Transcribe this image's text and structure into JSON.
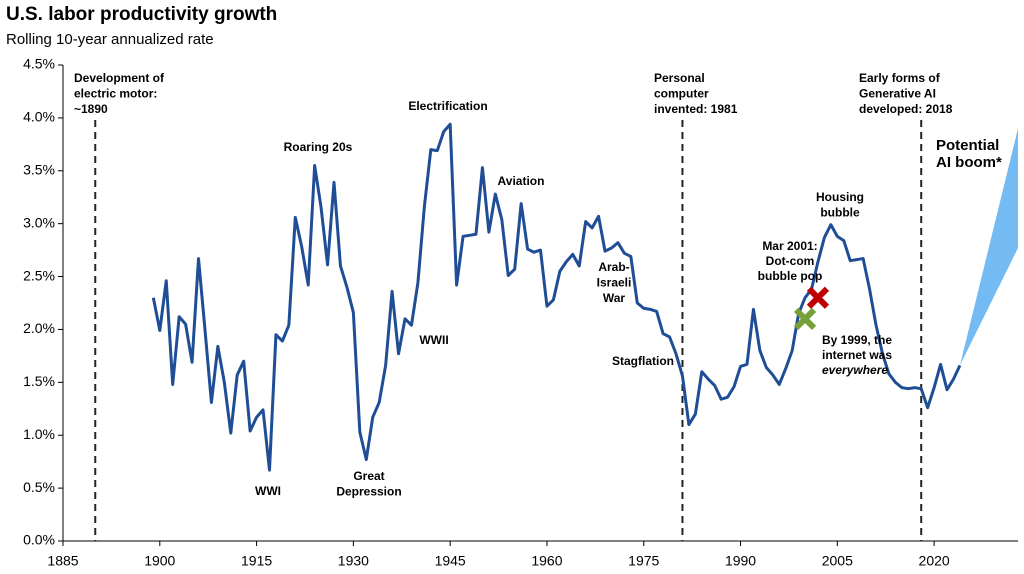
{
  "chart_data": {
    "type": "line",
    "title": "U.S. labor productivity growth",
    "subtitle": "Rolling 10-year annualized rate",
    "xlim": [
      1885,
      2033
    ],
    "xticks": [
      1885,
      1900,
      1915,
      1930,
      1945,
      1960,
      1975,
      1990,
      2005,
      2020
    ],
    "ylim": [
      0,
      4.5
    ],
    "yticks": [
      {
        "value": 0,
        "label": "0.0%"
      },
      {
        "value": 0.5,
        "label": "0.5%"
      },
      {
        "value": 1,
        "label": "1.0%"
      },
      {
        "value": 1.5,
        "label": "1.5%"
      },
      {
        "value": 2,
        "label": "2.0%"
      },
      {
        "value": 2.5,
        "label": "2.5%"
      },
      {
        "value": 3,
        "label": "3.0%"
      },
      {
        "value": 3.5,
        "label": "3.5%"
      },
      {
        "value": 4,
        "label": "4.0%"
      },
      {
        "value": 4.5,
        "label": "4.5%"
      }
    ],
    "grid": false,
    "x": [
      1899,
      1900,
      1901,
      1902,
      1903,
      1904,
      1905,
      1906,
      1907,
      1908,
      1909,
      1910,
      1911,
      1912,
      1913,
      1914,
      1915,
      1916,
      1917,
      1918,
      1919,
      1920,
      1921,
      1922,
      1923,
      1924,
      1925,
      1926,
      1927,
      1928,
      1929,
      1930,
      1931,
      1932,
      1933,
      1934,
      1935,
      1936,
      1937,
      1938,
      1939,
      1940,
      1941,
      1942,
      1943,
      1944,
      1945,
      1946,
      1947,
      1948,
      1949,
      1950,
      1951,
      1952,
      1953,
      1954,
      1955,
      1956,
      1957,
      1958,
      1959,
      1960,
      1961,
      1962,
      1963,
      1964,
      1965,
      1966,
      1967,
      1968,
      1969,
      1970,
      1971,
      1972,
      1973,
      1974,
      1975,
      1976,
      1977,
      1978,
      1979,
      1980,
      1981,
      1982,
      1983,
      1984,
      1985,
      1986,
      1987,
      1988,
      1989,
      1990,
      1991,
      1992,
      1993,
      1994,
      1995,
      1996,
      1997,
      1998,
      1999,
      2000,
      2001,
      2002,
      2003,
      2004,
      2005,
      2006,
      2007,
      2008,
      2009,
      2010,
      2011,
      2012,
      2013,
      2014,
      2015,
      2016,
      2017,
      2018,
      2019,
      2020,
      2021,
      2022,
      2023,
      2024
    ],
    "series": [
      {
        "color": "#1f4e96",
        "values": [
          2.3,
          1.99,
          2.46,
          1.48,
          2.12,
          2.05,
          1.69,
          2.67,
          2.0,
          1.31,
          1.84,
          1.5,
          1.02,
          1.57,
          1.7,
          1.04,
          1.17,
          1.24,
          0.67,
          1.95,
          1.89,
          2.04,
          3.06,
          2.78,
          2.42,
          3.55,
          3.15,
          2.61,
          3.39,
          2.6,
          2.4,
          2.16,
          1.03,
          0.77,
          1.17,
          1.31,
          1.66,
          2.36,
          1.77,
          2.1,
          2.04,
          2.44,
          3.16,
          3.7,
          3.69,
          3.87,
          3.94,
          2.42,
          2.88,
          2.89,
          2.9,
          3.53,
          2.92,
          3.28,
          3.04,
          2.51,
          2.57,
          3.19,
          2.76,
          2.73,
          2.75,
          2.22,
          2.28,
          2.55,
          2.64,
          2.71,
          2.6,
          3.02,
          2.96,
          3.07,
          2.74,
          2.77,
          2.82,
          2.72,
          2.69,
          2.25,
          2.2,
          2.19,
          2.17,
          1.96,
          1.93,
          1.77,
          1.56,
          1.1,
          1.2,
          1.6,
          1.53,
          1.47,
          1.34,
          1.36,
          1.46,
          1.65,
          1.67,
          2.19,
          1.8,
          1.64,
          1.57,
          1.48,
          1.63,
          1.8,
          2.15,
          2.3,
          2.38,
          2.64,
          2.87,
          2.99,
          2.88,
          2.84,
          2.65,
          2.66,
          2.67,
          2.38,
          2.04,
          1.77,
          1.58,
          1.5,
          1.45,
          1.44,
          1.45,
          1.44,
          1.26,
          1.45,
          1.67,
          1.43,
          1.53,
          1.66
        ]
      }
    ],
    "band": {
      "lines": [
        "Potential",
        "AI boom*"
      ],
      "color": "#5aaff0",
      "x": [
        2024,
        2033
      ],
      "upper": [
        1.66,
        3.9
      ],
      "lower": [
        1.66,
        2.77
      ]
    },
    "events": [
      {
        "x": 1890,
        "lines": [
          "Development of",
          "electric motor:",
          "~1890"
        ]
      },
      {
        "x": 1981,
        "lines": [
          "Personal",
          "computer",
          "invented: 1981"
        ]
      },
      {
        "x": 2018,
        "lines": [
          "Early forms of",
          "Generative AI",
          "developed: 2018"
        ]
      }
    ],
    "markers": [
      {
        "x": 2002,
        "y": 2.3,
        "color": "#c00000",
        "lines": [
          "Mar 2001:",
          "Dot-com",
          "bubble pop"
        ]
      },
      {
        "x": 2000,
        "y": 2.1,
        "color": "#77a03a",
        "lines": [
          "By 1999, the",
          "internet was",
          "everywhere"
        ],
        "italic_lines": [
          2
        ]
      }
    ],
    "annotations": [
      {
        "lines": [
          "Roaring 20s"
        ]
      },
      {
        "lines": [
          "Electrification"
        ]
      },
      {
        "lines": [
          "Aviation"
        ]
      },
      {
        "lines": [
          "Arab-",
          "Israeli",
          "War"
        ]
      },
      {
        "lines": [
          "Stagflation"
        ]
      },
      {
        "lines": [
          "WWII"
        ]
      },
      {
        "lines": [
          "WWI"
        ]
      },
      {
        "lines": [
          "Great",
          "Depression"
        ]
      },
      {
        "lines": [
          "Housing",
          "bubble"
        ]
      }
    ]
  }
}
